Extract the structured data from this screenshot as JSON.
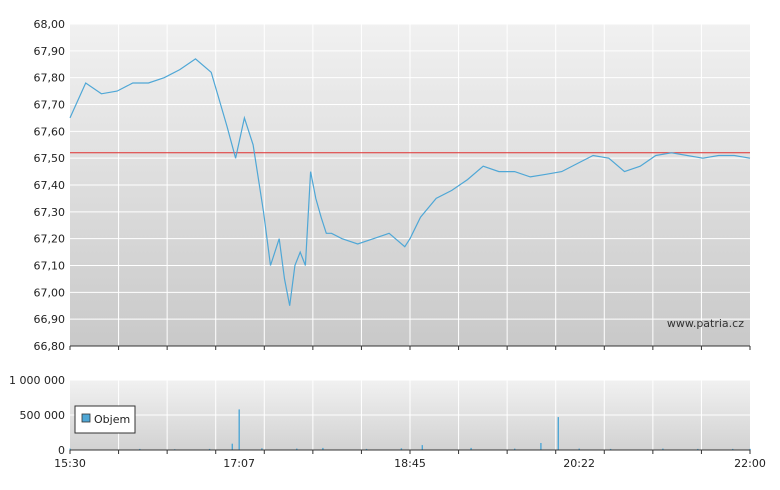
{
  "chart_data": [
    {
      "type": "line",
      "xlabel": "",
      "ylabel": "",
      "ylim": [
        66.8,
        68.0
      ],
      "yticks": [
        "66,80",
        "66,90",
        "67,00",
        "67,10",
        "67,20",
        "67,30",
        "67,40",
        "67,50",
        "67,60",
        "67,70",
        "67,80",
        "67,90",
        "68,00"
      ],
      "reference_line": 67.52,
      "colors": {
        "series": "#4fa7d6",
        "reference": "#e03030",
        "grid": "#ffffff",
        "bg_top": "#f1f1f1",
        "bg_bottom": "#c9c9c9"
      },
      "watermark": "www.patria.cz",
      "x": [
        "15:30",
        "15:39",
        "15:48",
        "15:57",
        "16:06",
        "16:15",
        "16:24",
        "16:33",
        "16:42",
        "16:51",
        "17:00",
        "17:05",
        "17:10",
        "17:15",
        "17:21",
        "17:25",
        "17:30",
        "17:33",
        "17:36",
        "17:39",
        "17:42",
        "17:45",
        "17:48",
        "17:51",
        "17:54",
        "17:57",
        "18:00",
        "18:06",
        "18:15",
        "18:24",
        "18:33",
        "18:42",
        "18:45",
        "18:51",
        "19:00",
        "19:09",
        "19:18",
        "19:27",
        "19:36",
        "19:45",
        "19:54",
        "20:03",
        "20:12",
        "20:21",
        "20:30",
        "20:39",
        "20:48",
        "20:57",
        "21:06",
        "21:15",
        "21:24",
        "21:33",
        "21:42",
        "21:51",
        "22:00"
      ],
      "series": [
        {
          "values": [
            67.65,
            67.78,
            67.74,
            67.75,
            67.78,
            67.78,
            67.8,
            67.83,
            67.87,
            67.82,
            67.62,
            67.5,
            67.65,
            67.55,
            67.3,
            67.1,
            67.2,
            67.05,
            66.95,
            67.1,
            67.15,
            67.1,
            67.45,
            67.35,
            67.28,
            67.22,
            67.22,
            67.2,
            67.18,
            67.2,
            67.22,
            67.17,
            67.2,
            67.28,
            67.35,
            67.38,
            67.42,
            67.47,
            67.45,
            67.45,
            67.43,
            67.44,
            67.45,
            67.48,
            67.51,
            67.5,
            67.45,
            67.47,
            67.51,
            67.52,
            67.51,
            67.5,
            67.51,
            67.51,
            67.5
          ]
        }
      ]
    },
    {
      "type": "bar",
      "ylim": [
        0,
        1000000
      ],
      "yticks": [
        "0",
        "500 000",
        "1 000 000"
      ],
      "xticks": [
        "15:30",
        "17:07",
        "18:45",
        "20:22",
        "22:00"
      ],
      "legend": "Objem",
      "legend_position": "left",
      "colors": {
        "bars": "#4fa7d6"
      },
      "x": [
        "15:30",
        "16:10",
        "16:30",
        "16:50",
        "17:03",
        "17:07",
        "17:20",
        "17:40",
        "17:55",
        "18:20",
        "18:40",
        "18:52",
        "19:20",
        "19:45",
        "20:00",
        "20:10",
        "20:22",
        "20:40",
        "21:10",
        "21:30",
        "21:50",
        "22:00"
      ],
      "values": [
        20000,
        15000,
        12000,
        15000,
        90000,
        580000,
        25000,
        20000,
        30000,
        15000,
        25000,
        70000,
        30000,
        20000,
        100000,
        470000,
        20000,
        15000,
        20000,
        15000,
        15000,
        15000
      ]
    }
  ]
}
